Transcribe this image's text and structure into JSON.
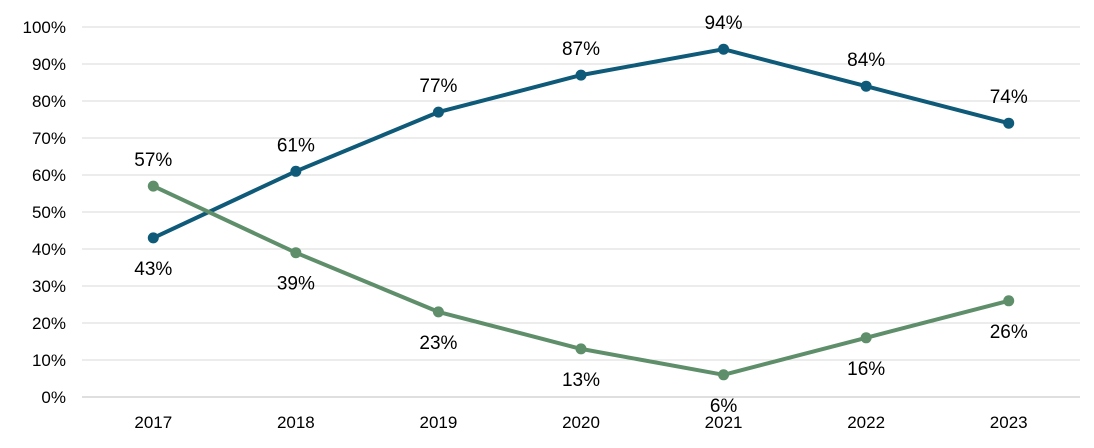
{
  "chart_data": {
    "type": "line",
    "title": "",
    "xlabel": "",
    "ylabel": "",
    "categories": [
      "2017",
      "2018",
      "2019",
      "2020",
      "2021",
      "2022",
      "2023"
    ],
    "ylim": [
      0,
      100
    ],
    "yticks": [
      0,
      10,
      20,
      30,
      40,
      50,
      60,
      70,
      80,
      90,
      100
    ],
    "ytick_labels": [
      "0%",
      "10%",
      "20%",
      "30%",
      "40%",
      "50%",
      "60%",
      "70%",
      "80%",
      "90%",
      "100%"
    ],
    "grid": true,
    "legend": "none",
    "series": [
      {
        "values": [
          43,
          61,
          77,
          87,
          94,
          84,
          74
        ],
        "labels": [
          "43%",
          "61%",
          "77%",
          "87%",
          "94%",
          "84%",
          "74%"
        ],
        "color": "#0e5a78"
      },
      {
        "values": [
          57,
          39,
          23,
          13,
          6,
          16,
          26
        ],
        "labels": [
          "57%",
          "39%",
          "23%",
          "13%",
          "6%",
          "16%",
          "26%"
        ],
        "color": "#5f8f6a"
      }
    ]
  }
}
